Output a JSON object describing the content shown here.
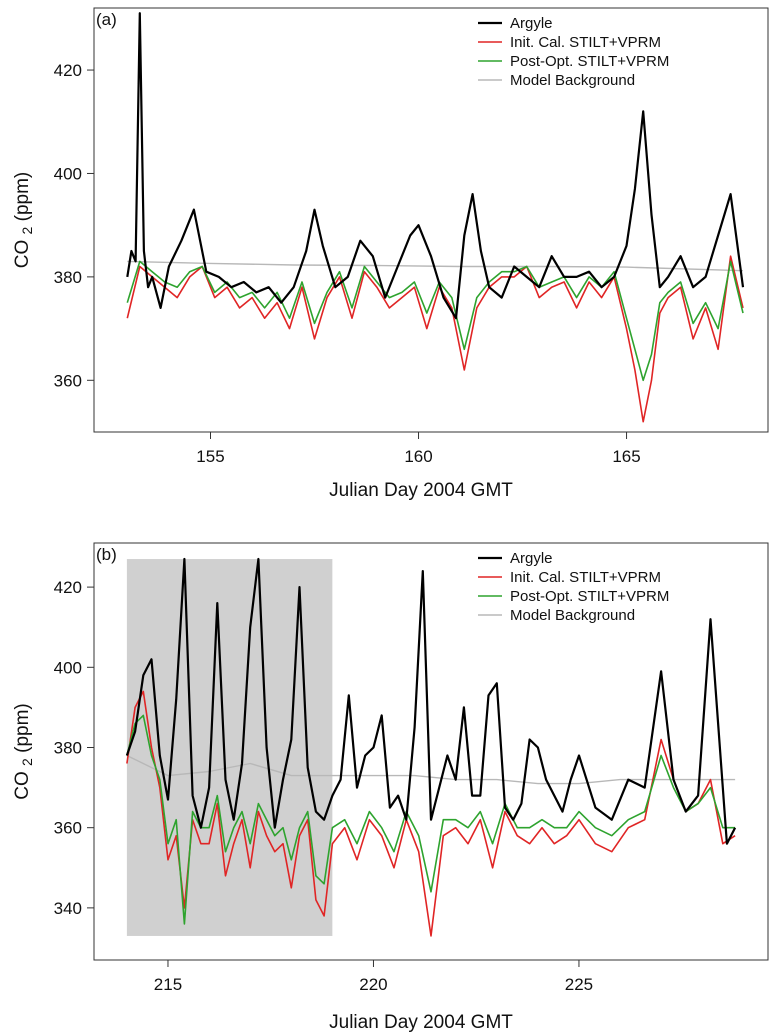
{
  "chart_data": [
    {
      "type": "line",
      "panel_label": "(a)",
      "xlabel": "Julian Day 2004 GMT",
      "ylabel_main": "CO",
      "ylabel_sub": "2",
      "ylabel_unit": "(ppm)",
      "xlim": [
        152.2,
        168.4
      ],
      "ylim": [
        350,
        432
      ],
      "xticks": [
        155,
        160,
        165
      ],
      "yticks": [
        360,
        380,
        400,
        420
      ],
      "legend_position": "top-right",
      "shaded_region": null,
      "series": [
        {
          "name": "Argyle",
          "color": "#000000",
          "x": [
            153.0,
            153.1,
            153.2,
            153.3,
            153.4,
            153.5,
            153.6,
            153.8,
            154.0,
            154.3,
            154.6,
            154.9,
            155.2,
            155.5,
            155.8,
            156.1,
            156.4,
            156.7,
            157.0,
            157.3,
            157.5,
            157.7,
            158.0,
            158.3,
            158.6,
            158.9,
            159.2,
            159.5,
            159.8,
            160.0,
            160.3,
            160.6,
            160.9,
            161.1,
            161.3,
            161.5,
            161.7,
            162.0,
            162.3,
            162.6,
            162.9,
            163.2,
            163.5,
            163.8,
            164.1,
            164.4,
            164.7,
            165.0,
            165.2,
            165.4,
            165.6,
            165.8,
            166.0,
            166.3,
            166.6,
            166.9,
            167.2,
            167.5,
            167.8
          ],
          "y": [
            380,
            385,
            383,
            431,
            385,
            378,
            380,
            374,
            382,
            387,
            393,
            381,
            380,
            378,
            379,
            377,
            378,
            375,
            378,
            385,
            393,
            386,
            378,
            380,
            387,
            384,
            376,
            382,
            388,
            390,
            384,
            376,
            372,
            388,
            396,
            385,
            378,
            376,
            382,
            380,
            378,
            384,
            380,
            380,
            381,
            378,
            380,
            386,
            397,
            412,
            392,
            378,
            380,
            384,
            378,
            380,
            388,
            396,
            378
          ]
        },
        {
          "name": "Init. Cal. STILT+VPRM",
          "color": "#e02525",
          "x": [
            153.0,
            153.3,
            153.6,
            153.9,
            154.2,
            154.5,
            154.8,
            155.1,
            155.4,
            155.7,
            156.0,
            156.3,
            156.6,
            156.9,
            157.2,
            157.5,
            157.8,
            158.1,
            158.4,
            158.7,
            159.0,
            159.3,
            159.6,
            159.9,
            160.2,
            160.5,
            160.8,
            161.1,
            161.4,
            161.7,
            162.0,
            162.3,
            162.6,
            162.9,
            163.2,
            163.5,
            163.8,
            164.1,
            164.4,
            164.7,
            165.0,
            165.2,
            165.4,
            165.6,
            165.8,
            166.0,
            166.3,
            166.6,
            166.9,
            167.2,
            167.5,
            167.8
          ],
          "y": [
            372,
            382,
            380,
            378,
            376,
            380,
            382,
            376,
            378,
            374,
            376,
            372,
            375,
            370,
            378,
            368,
            376,
            380,
            372,
            381,
            378,
            374,
            376,
            378,
            370,
            378,
            374,
            362,
            374,
            378,
            380,
            380,
            382,
            376,
            378,
            379,
            374,
            379,
            376,
            380,
            370,
            362,
            352,
            360,
            373,
            376,
            378,
            368,
            374,
            366,
            384,
            374
          ]
        },
        {
          "name": "Post-Opt. STILT+VPRM",
          "color": "#2ea32e",
          "x": [
            153.0,
            153.3,
            153.6,
            153.9,
            154.2,
            154.5,
            154.8,
            155.1,
            155.4,
            155.7,
            156.0,
            156.3,
            156.6,
            156.9,
            157.2,
            157.5,
            157.8,
            158.1,
            158.4,
            158.7,
            159.0,
            159.3,
            159.6,
            159.9,
            160.2,
            160.5,
            160.8,
            161.1,
            161.4,
            161.7,
            162.0,
            162.3,
            162.6,
            162.9,
            163.2,
            163.5,
            163.8,
            164.1,
            164.4,
            164.7,
            165.0,
            165.2,
            165.4,
            165.6,
            165.8,
            166.0,
            166.3,
            166.6,
            166.9,
            167.2,
            167.5,
            167.8
          ],
          "y": [
            375,
            383,
            381,
            379,
            378,
            381,
            382,
            377,
            379,
            376,
            377,
            374,
            377,
            372,
            379,
            371,
            377,
            381,
            374,
            382,
            379,
            376,
            377,
            379,
            373,
            379,
            376,
            366,
            376,
            379,
            381,
            381,
            382,
            378,
            379,
            380,
            376,
            380,
            378,
            381,
            372,
            366,
            360,
            365,
            375,
            377,
            379,
            371,
            375,
            370,
            383,
            373
          ]
        },
        {
          "name": "Model Background",
          "color": "#b8b8b8",
          "x": [
            153.0,
            155.0,
            157.0,
            159.0,
            161.0,
            163.0,
            165.0,
            167.8
          ],
          "y": [
            383.0,
            382.6,
            382.3,
            382.2,
            382.0,
            382.0,
            381.9,
            381.2
          ]
        }
      ]
    },
    {
      "type": "line",
      "panel_label": "(b)",
      "xlabel": "Julian Day 2004 GMT",
      "ylabel_main": "CO",
      "ylabel_sub": "2",
      "ylabel_unit": "(ppm)",
      "xlim": [
        213.2,
        229.6
      ],
      "ylim": [
        327,
        431
      ],
      "xticks": [
        215,
        220,
        225
      ],
      "yticks": [
        340,
        360,
        380,
        400,
        420
      ],
      "legend_position": "top-right",
      "shaded_region": {
        "x": [
          214.0,
          219.0
        ],
        "y": [
          333,
          427
        ],
        "color": "#d0d0d0"
      },
      "series": [
        {
          "name": "Argyle",
          "color": "#000000",
          "x": [
            214.0,
            214.2,
            214.4,
            214.6,
            214.8,
            215.0,
            215.2,
            215.4,
            215.6,
            215.8,
            216.0,
            216.2,
            216.4,
            216.6,
            216.8,
            217.0,
            217.2,
            217.4,
            217.6,
            217.8,
            218.0,
            218.2,
            218.4,
            218.6,
            218.8,
            219.0,
            219.2,
            219.4,
            219.6,
            219.8,
            220.0,
            220.2,
            220.4,
            220.6,
            220.8,
            221.0,
            221.2,
            221.4,
            221.6,
            221.8,
            222.0,
            222.2,
            222.4,
            222.6,
            222.8,
            223.0,
            223.2,
            223.4,
            223.6,
            223.8,
            224.0,
            224.2,
            224.4,
            224.6,
            224.8,
            225.0,
            225.4,
            225.8,
            226.2,
            226.6,
            227.0,
            227.3,
            227.6,
            227.9,
            228.2,
            228.4,
            228.6,
            228.8
          ],
          "y": [
            378,
            384,
            398,
            402,
            378,
            367,
            392,
            427,
            368,
            360,
            370,
            416,
            372,
            362,
            376,
            410,
            427,
            380,
            360,
            372,
            382,
            420,
            375,
            364,
            362,
            368,
            372,
            393,
            370,
            378,
            380,
            388,
            365,
            368,
            362,
            385,
            424,
            362,
            370,
            378,
            372,
            390,
            368,
            368,
            393,
            396,
            365,
            362,
            366,
            382,
            380,
            372,
            368,
            364,
            372,
            378,
            365,
            362,
            372,
            370,
            399,
            372,
            364,
            368,
            412,
            384,
            356,
            360
          ]
        },
        {
          "name": "Init. Cal. STILT+VPRM",
          "color": "#e02525",
          "x": [
            214.0,
            214.2,
            214.4,
            214.6,
            214.8,
            215.0,
            215.2,
            215.4,
            215.6,
            215.8,
            216.0,
            216.2,
            216.4,
            216.6,
            216.8,
            217.0,
            217.2,
            217.4,
            217.6,
            217.8,
            218.0,
            218.2,
            218.4,
            218.6,
            218.8,
            219.0,
            219.3,
            219.6,
            219.9,
            220.2,
            220.5,
            220.8,
            221.1,
            221.4,
            221.7,
            222.0,
            222.3,
            222.6,
            222.9,
            223.2,
            223.5,
            223.8,
            224.1,
            224.4,
            224.7,
            225.0,
            225.4,
            225.8,
            226.2,
            226.6,
            227.0,
            227.3,
            227.6,
            227.9,
            228.2,
            228.5,
            228.8
          ],
          "y": [
            376,
            390,
            394,
            380,
            370,
            352,
            358,
            340,
            362,
            356,
            356,
            366,
            348,
            356,
            362,
            350,
            364,
            358,
            354,
            356,
            345,
            358,
            362,
            342,
            338,
            356,
            360,
            352,
            362,
            358,
            350,
            362,
            354,
            333,
            358,
            360,
            356,
            362,
            350,
            364,
            358,
            356,
            360,
            356,
            358,
            362,
            356,
            354,
            360,
            362,
            382,
            372,
            364,
            366,
            372,
            356,
            358
          ]
        },
        {
          "name": "Post-Opt. STILT+VPRM",
          "color": "#2ea32e",
          "x": [
            214.0,
            214.2,
            214.4,
            214.6,
            214.8,
            215.0,
            215.2,
            215.4,
            215.6,
            215.8,
            216.0,
            216.2,
            216.4,
            216.6,
            216.8,
            217.0,
            217.2,
            217.4,
            217.6,
            217.8,
            218.0,
            218.2,
            218.4,
            218.6,
            218.8,
            219.0,
            219.3,
            219.6,
            219.9,
            220.2,
            220.5,
            220.8,
            221.1,
            221.4,
            221.7,
            222.0,
            222.3,
            222.6,
            222.9,
            223.2,
            223.5,
            223.8,
            224.1,
            224.4,
            224.7,
            225.0,
            225.4,
            225.8,
            226.2,
            226.6,
            227.0,
            227.3,
            227.6,
            227.9,
            228.2,
            228.5,
            228.8
          ],
          "y": [
            378,
            386,
            388,
            378,
            372,
            356,
            362,
            336,
            364,
            360,
            360,
            368,
            354,
            360,
            364,
            356,
            366,
            362,
            358,
            360,
            352,
            360,
            364,
            348,
            346,
            360,
            362,
            356,
            364,
            360,
            354,
            364,
            358,
            344,
            362,
            362,
            360,
            364,
            356,
            366,
            360,
            360,
            362,
            360,
            360,
            364,
            360,
            358,
            362,
            364,
            378,
            370,
            364,
            366,
            370,
            360,
            360
          ]
        },
        {
          "name": "Model Background",
          "color": "#b8b8b8",
          "x": [
            214.0,
            215.0,
            216.0,
            217.0,
            218.0,
            219.0,
            220.0,
            221.0,
            222.0,
            223.0,
            224.0,
            225.0,
            226.0,
            227.0,
            228.0,
            228.8
          ],
          "y": [
            378.0,
            373.0,
            374.0,
            376.0,
            373.0,
            373.0,
            373.0,
            373.0,
            372.0,
            372.0,
            371.0,
            371.0,
            372.0,
            372.0,
            372.0,
            372.0
          ]
        }
      ]
    }
  ]
}
